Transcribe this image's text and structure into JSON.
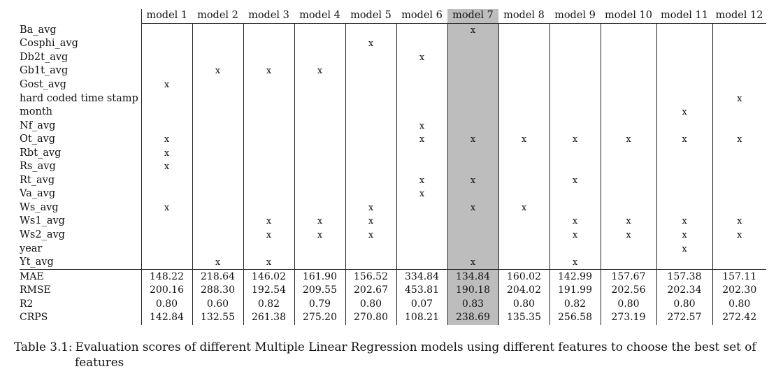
{
  "table": {
    "columns": [
      "model 1",
      "model 2",
      "model 3",
      "model 4",
      "model 5",
      "model 6",
      "model 7",
      "model 8",
      "model 9",
      "model 10",
      "model 11",
      "model 12"
    ],
    "highlighted_column_index": 6,
    "highlight_color": "#bdbdbd",
    "mark": "x",
    "features": [
      {
        "name": "Ba_avg",
        "marks": [
          7
        ]
      },
      {
        "name": "Cosphi_avg",
        "marks": [
          5
        ]
      },
      {
        "name": "Db2t_avg",
        "marks": [
          6
        ]
      },
      {
        "name": "Gb1t_avg",
        "marks": [
          2,
          3,
          4
        ]
      },
      {
        "name": "Gost_avg",
        "marks": [
          1
        ]
      },
      {
        "name": "hard coded time stamp",
        "marks": [
          12
        ]
      },
      {
        "name": "month",
        "marks": [
          11
        ]
      },
      {
        "name": "Nf_avg",
        "marks": [
          6
        ]
      },
      {
        "name": "Ot_avg",
        "marks": [
          1,
          6,
          7,
          8,
          9,
          10,
          11,
          12
        ]
      },
      {
        "name": "Rbt_avg",
        "marks": [
          1
        ]
      },
      {
        "name": "Rs_avg",
        "marks": [
          1
        ]
      },
      {
        "name": "Rt_avg",
        "marks": [
          6,
          7,
          9
        ]
      },
      {
        "name": "Va_avg",
        "marks": [
          6
        ]
      },
      {
        "name": "Ws_avg",
        "marks": [
          1,
          5,
          7,
          8
        ]
      },
      {
        "name": "Ws1_avg",
        "marks": [
          3,
          4,
          5,
          9,
          10,
          11,
          12
        ]
      },
      {
        "name": "Ws2_avg",
        "marks": [
          3,
          4,
          5,
          9,
          10,
          11,
          12
        ]
      },
      {
        "name": "year",
        "marks": [
          11
        ]
      },
      {
        "name": "Yt_avg",
        "marks": [
          2,
          3,
          7,
          9
        ]
      }
    ],
    "metrics": [
      {
        "name": "MAE",
        "values": [
          "148.22",
          "218.64",
          "146.02",
          "161.90",
          "156.52",
          "334.84",
          "134.84",
          "160.02",
          "142.99",
          "157.67",
          "157.38",
          "157.11"
        ]
      },
      {
        "name": "RMSE",
        "values": [
          "200.16",
          "288.30",
          "192.54",
          "209.55",
          "202.67",
          "453.81",
          "190.18",
          "204.02",
          "191.99",
          "202.56",
          "202.34",
          "202.30"
        ]
      },
      {
        "name": "R2",
        "values": [
          "0.80",
          "0.60",
          "0.82",
          "0.79",
          "0.80",
          "0.07",
          "0.83",
          "0.80",
          "0.82",
          "0.80",
          "0.80",
          "0.80"
        ]
      },
      {
        "name": "CRPS",
        "values": [
          "142.84",
          "132.55",
          "261.38",
          "275.20",
          "270.80",
          "108.21",
          "238.69",
          "135.35",
          "256.58",
          "273.19",
          "272.57",
          "272.42"
        ]
      }
    ]
  },
  "caption": {
    "label": "Table 3.1:",
    "text_line1": "Evaluation scores of different Multiple Linear Regression models using different features to choose the best set of",
    "text_line2": "features"
  }
}
